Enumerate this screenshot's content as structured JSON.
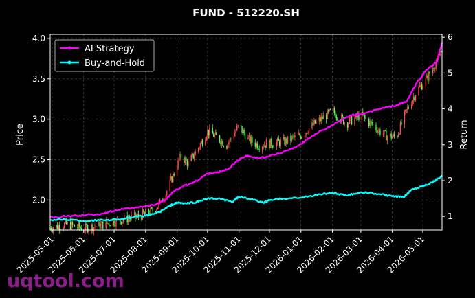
{
  "chart_data": {
    "type": "line",
    "title": "FUND - 512220.SH",
    "xlabel": "",
    "ylabel": "Price",
    "ylabel_right": "Return",
    "ylim": [
      1.63,
      4.05
    ],
    "ylim_right": [
      0.62,
      6.08
    ],
    "yticks": [
      "2.0",
      "2.5",
      "3.0",
      "3.5",
      "4.0"
    ],
    "yticks_right": [
      "1",
      "2",
      "3",
      "4",
      "5",
      "6"
    ],
    "xlim": [
      "2025-04-29",
      "2026-05-20"
    ],
    "x_tick_labels": [
      "2025-05-01",
      "2025-06-01",
      "2025-07-01",
      "2025-08-01",
      "2025-09-01",
      "2025-10-01",
      "2025-11-01",
      "2025-12-01",
      "2026-01-01",
      "2026-02-01",
      "2026-03-01",
      "2026-04-01",
      "2026-05-01"
    ],
    "grid": true,
    "legend_position": "upper-left",
    "background": "#000000",
    "series": [
      {
        "name": "AI Strategy",
        "axis": "right",
        "color": "#ff00ff",
        "points": [
          [
            "2025-04-29",
            0.98
          ],
          [
            "2025-05-15",
            1.0
          ],
          [
            "2025-06-01",
            1.03
          ],
          [
            "2025-06-20",
            1.08
          ],
          [
            "2025-07-05",
            1.18
          ],
          [
            "2025-07-25",
            1.25
          ],
          [
            "2025-08-10",
            1.32
          ],
          [
            "2025-08-20",
            1.45
          ],
          [
            "2025-08-28",
            1.68
          ],
          [
            "2025-09-05",
            1.82
          ],
          [
            "2025-09-15",
            1.92
          ],
          [
            "2025-09-22",
            2.02
          ],
          [
            "2025-10-01",
            2.2
          ],
          [
            "2025-10-10",
            2.22
          ],
          [
            "2025-10-20",
            2.3
          ],
          [
            "2025-11-01",
            2.58
          ],
          [
            "2025-11-08",
            2.7
          ],
          [
            "2025-11-20",
            2.62
          ],
          [
            "2025-12-01",
            2.68
          ],
          [
            "2025-12-20",
            2.85
          ],
          [
            "2026-01-01",
            3.02
          ],
          [
            "2026-01-15",
            3.3
          ],
          [
            "2026-02-01",
            3.55
          ],
          [
            "2026-02-20",
            3.82
          ],
          [
            "2026-03-01",
            3.85
          ],
          [
            "2026-03-20",
            4.0
          ],
          [
            "2026-04-05",
            4.1
          ],
          [
            "2026-04-15",
            4.2
          ],
          [
            "2026-04-25",
            4.72
          ],
          [
            "2026-05-05",
            5.1
          ],
          [
            "2026-05-15",
            5.3
          ],
          [
            "2026-05-20",
            5.85
          ]
        ]
      },
      {
        "name": "Buy-and-Hold",
        "axis": "right",
        "color": "#00ffff",
        "points": [
          [
            "2025-04-29",
            0.9
          ],
          [
            "2025-05-15",
            0.92
          ],
          [
            "2025-06-01",
            0.87
          ],
          [
            "2025-06-20",
            0.9
          ],
          [
            "2025-07-05",
            0.92
          ],
          [
            "2025-07-20",
            0.98
          ],
          [
            "2025-08-01",
            1.02
          ],
          [
            "2025-08-15",
            1.12
          ],
          [
            "2025-08-25",
            1.3
          ],
          [
            "2025-09-01",
            1.38
          ],
          [
            "2025-09-10",
            1.36
          ],
          [
            "2025-09-20",
            1.4
          ],
          [
            "2025-10-01",
            1.5
          ],
          [
            "2025-10-15",
            1.48
          ],
          [
            "2025-10-25",
            1.4
          ],
          [
            "2025-11-01",
            1.55
          ],
          [
            "2025-11-15",
            1.46
          ],
          [
            "2025-11-25",
            1.38
          ],
          [
            "2025-12-01",
            1.45
          ],
          [
            "2025-12-15",
            1.5
          ],
          [
            "2026-01-01",
            1.52
          ],
          [
            "2026-01-20",
            1.62
          ],
          [
            "2026-02-01",
            1.66
          ],
          [
            "2026-02-15",
            1.58
          ],
          [
            "2026-03-01",
            1.68
          ],
          [
            "2026-03-20",
            1.62
          ],
          [
            "2026-04-01",
            1.56
          ],
          [
            "2026-04-12",
            1.53
          ],
          [
            "2026-04-20",
            1.75
          ],
          [
            "2026-05-01",
            1.85
          ],
          [
            "2026-05-10",
            1.95
          ],
          [
            "2026-05-20",
            2.12
          ]
        ]
      },
      {
        "name": "Price",
        "axis": "left",
        "type": "candlestick",
        "up_color": "#ff5050",
        "down_color": "#50ff50",
        "points": [
          [
            "2025-04-29",
            1.66
          ],
          [
            "2025-05-15",
            1.7
          ],
          [
            "2025-06-01",
            1.65
          ],
          [
            "2025-06-20",
            1.7
          ],
          [
            "2025-07-10",
            1.76
          ],
          [
            "2025-07-25",
            1.8
          ],
          [
            "2025-08-10",
            1.88
          ],
          [
            "2025-08-20",
            2.05
          ],
          [
            "2025-08-28",
            2.3
          ],
          [
            "2025-09-05",
            2.55
          ],
          [
            "2025-09-12",
            2.45
          ],
          [
            "2025-09-22",
            2.65
          ],
          [
            "2025-10-01",
            2.85
          ],
          [
            "2025-10-10",
            2.78
          ],
          [
            "2025-10-20",
            2.68
          ],
          [
            "2025-11-01",
            2.92
          ],
          [
            "2025-11-10",
            2.75
          ],
          [
            "2025-11-20",
            2.68
          ],
          [
            "2025-12-01",
            2.7
          ],
          [
            "2025-12-15",
            2.72
          ],
          [
            "2026-01-01",
            2.8
          ],
          [
            "2026-01-15",
            2.95
          ],
          [
            "2026-02-01",
            3.1
          ],
          [
            "2026-02-15",
            2.95
          ],
          [
            "2026-03-01",
            3.05
          ],
          [
            "2026-03-15",
            2.9
          ],
          [
            "2026-03-25",
            2.8
          ],
          [
            "2026-04-05",
            2.78
          ],
          [
            "2026-04-15",
            3.1
          ],
          [
            "2026-04-25",
            3.35
          ],
          [
            "2026-05-05",
            3.5
          ],
          [
            "2026-05-20",
            3.85
          ]
        ]
      }
    ],
    "watermark": "uqtool.com"
  }
}
